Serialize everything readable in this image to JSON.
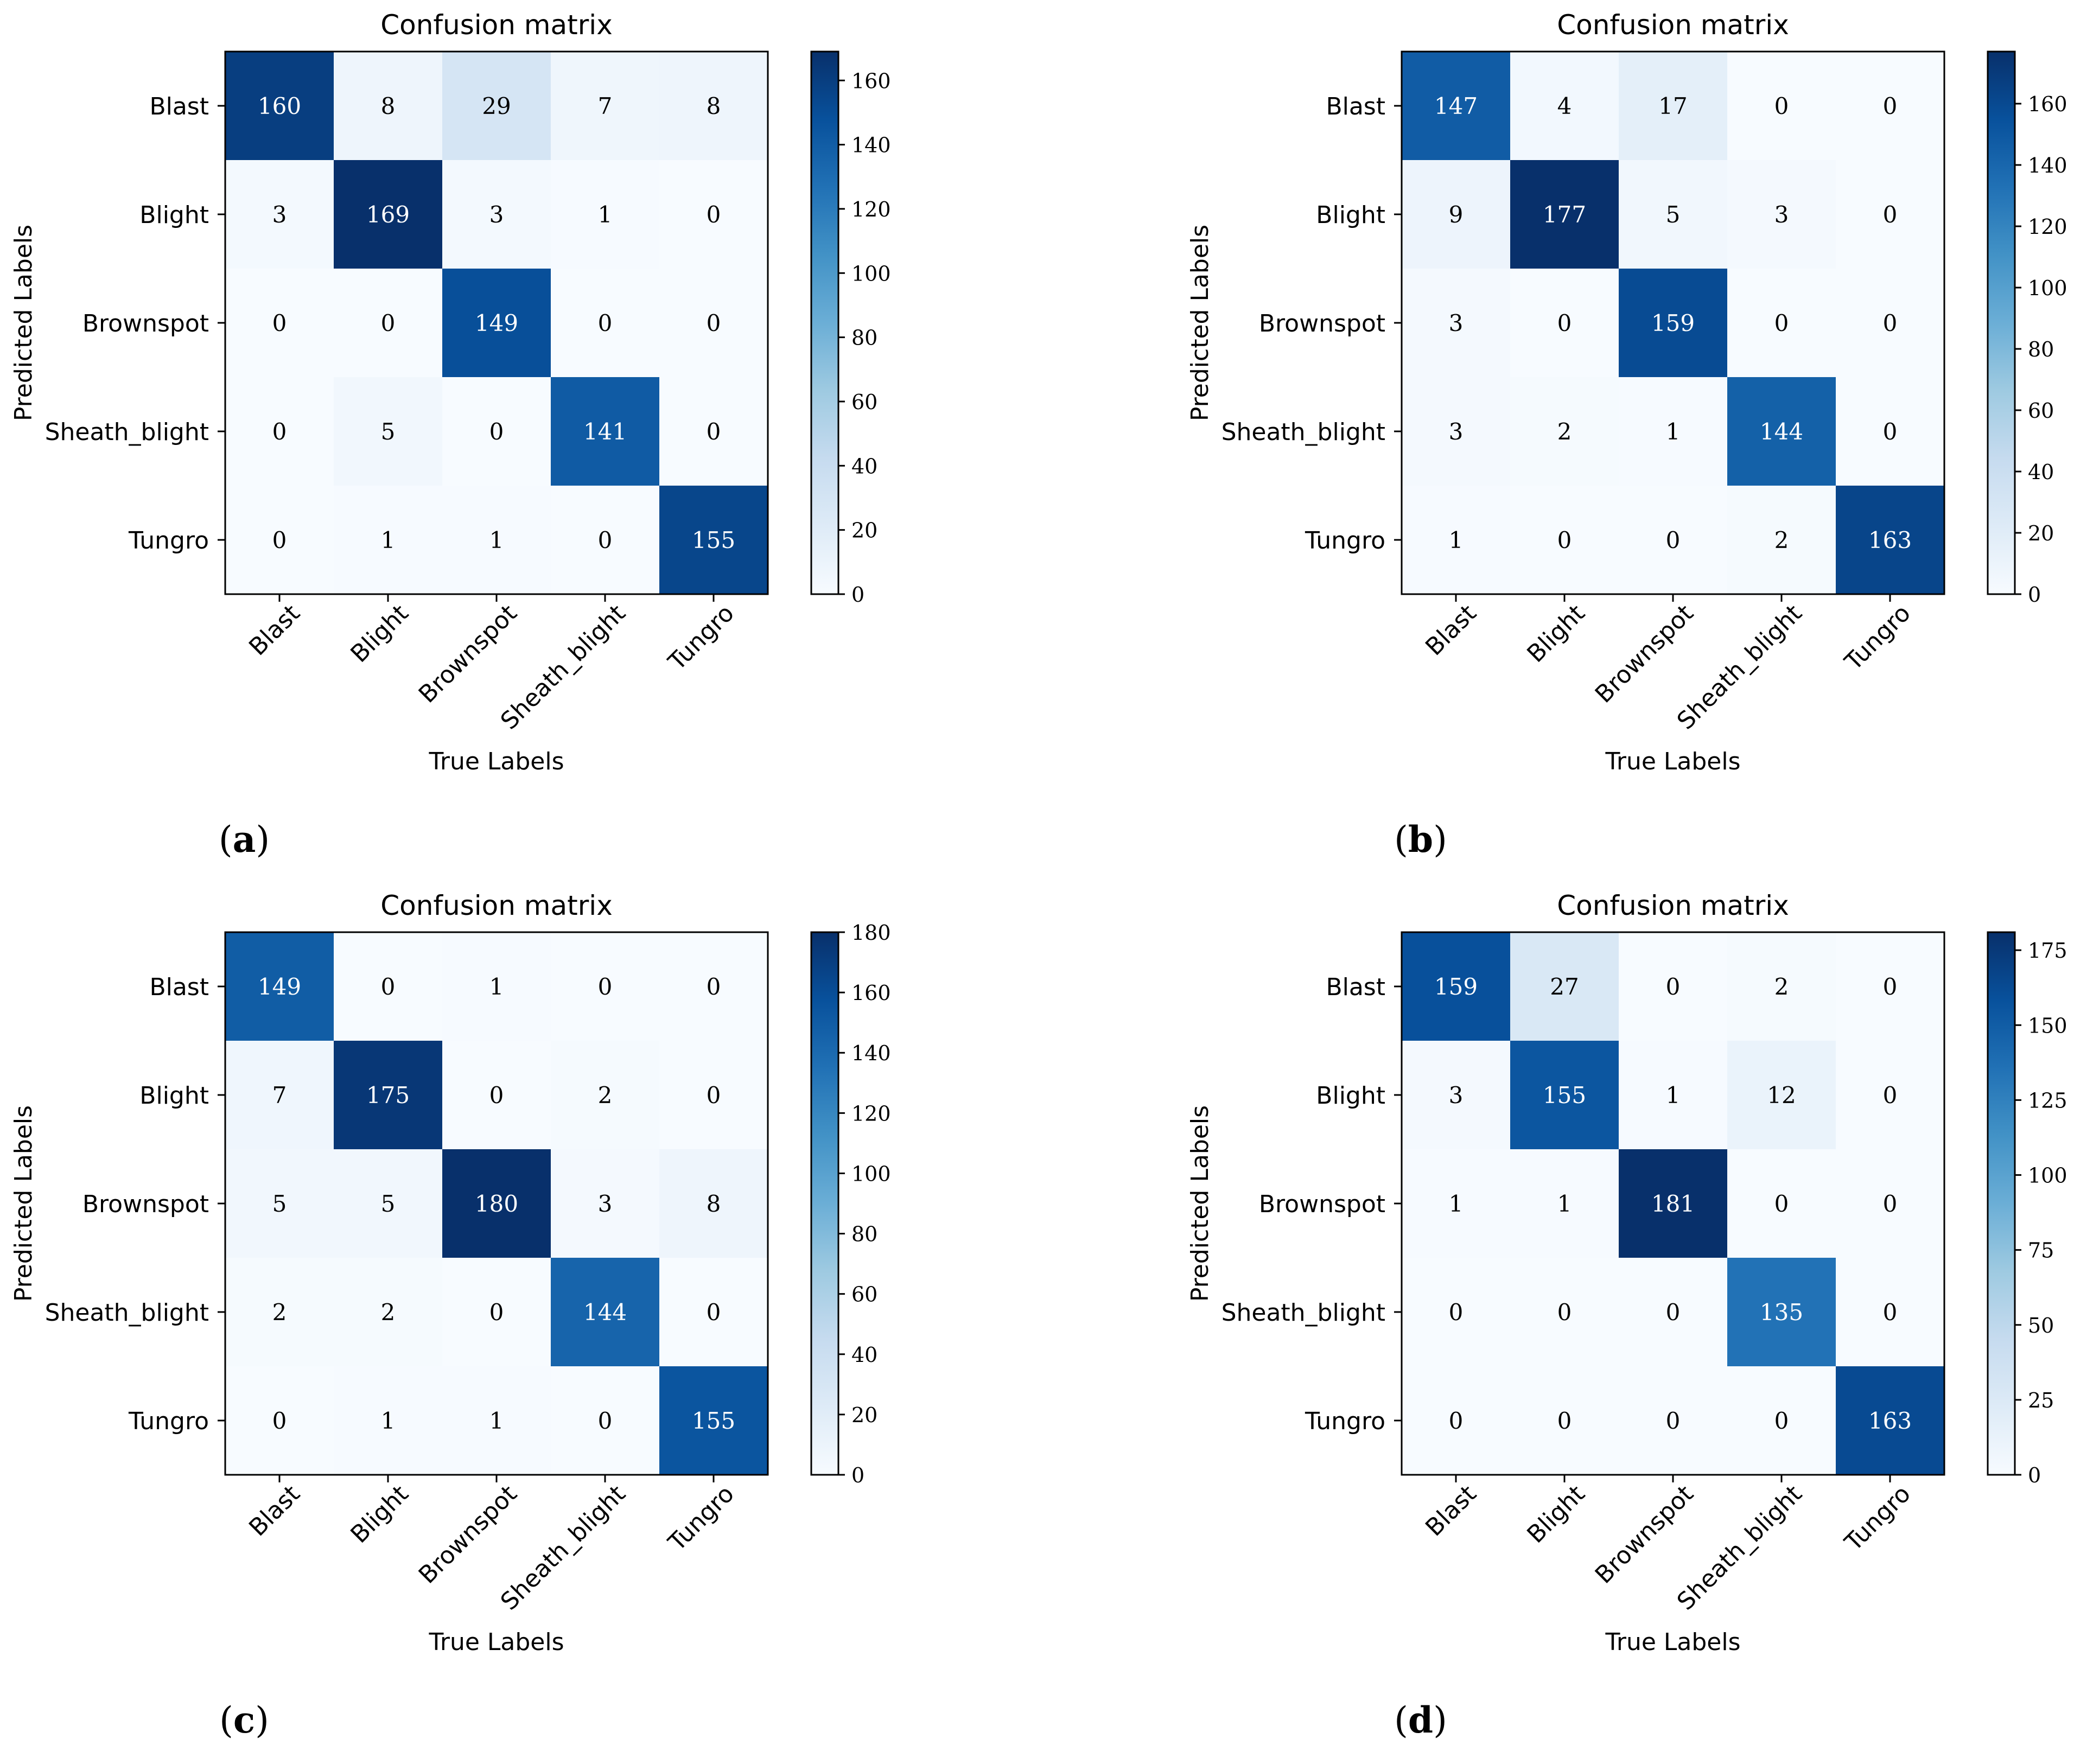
{
  "chart_data": [
    {
      "type": "heatmap",
      "panel_label": "a",
      "title": "Confusion matrix",
      "xlabel": "True Labels",
      "ylabel": "Predicted Labels",
      "x_categories": [
        "Blast",
        "Blight",
        "Brownspot",
        "Sheath_blight",
        "Tungro"
      ],
      "y_categories": [
        "Blast",
        "Blight",
        "Brownspot",
        "Sheath_blight",
        "Tungro"
      ],
      "values": [
        [
          160,
          8,
          29,
          7,
          8
        ],
        [
          3,
          169,
          3,
          1,
          0
        ],
        [
          0,
          0,
          149,
          0,
          0
        ],
        [
          0,
          5,
          0,
          141,
          0
        ],
        [
          0,
          1,
          1,
          0,
          155
        ]
      ],
      "colorbar": {
        "min": 0,
        "max": 169,
        "ticks": [
          0,
          20,
          40,
          60,
          80,
          100,
          120,
          140,
          160
        ],
        "colormap": "Blues"
      }
    },
    {
      "type": "heatmap",
      "panel_label": "b",
      "title": "Confusion matrix",
      "xlabel": "True Labels",
      "ylabel": "Predicted Labels",
      "x_categories": [
        "Blast",
        "Blight",
        "Brownspot",
        "Sheath_blight",
        "Tungro"
      ],
      "y_categories": [
        "Blast",
        "Blight",
        "Brownspot",
        "Sheath_blight",
        "Tungro"
      ],
      "values": [
        [
          147,
          4,
          17,
          0,
          0
        ],
        [
          9,
          177,
          5,
          3,
          0
        ],
        [
          3,
          0,
          159,
          0,
          0
        ],
        [
          3,
          2,
          1,
          144,
          0
        ],
        [
          1,
          0,
          0,
          2,
          163
        ]
      ],
      "colorbar": {
        "min": 0,
        "max": 177,
        "ticks": [
          0,
          20,
          40,
          60,
          80,
          100,
          120,
          140,
          160
        ],
        "colormap": "Blues"
      }
    },
    {
      "type": "heatmap",
      "panel_label": "c",
      "title": "Confusion matrix",
      "xlabel": "True Labels",
      "ylabel": "Predicted Labels",
      "x_categories": [
        "Blast",
        "Blight",
        "Brownspot",
        "Sheath_blight",
        "Tungro"
      ],
      "y_categories": [
        "Blast",
        "Blight",
        "Brownspot",
        "Sheath_blight",
        "Tungro"
      ],
      "values": [
        [
          149,
          0,
          1,
          0,
          0
        ],
        [
          7,
          175,
          0,
          2,
          0
        ],
        [
          5,
          5,
          180,
          3,
          8
        ],
        [
          2,
          2,
          0,
          144,
          0
        ],
        [
          0,
          1,
          1,
          0,
          155
        ]
      ],
      "colorbar": {
        "min": 0,
        "max": 180,
        "ticks": [
          0,
          20,
          40,
          60,
          80,
          100,
          120,
          140,
          160,
          180
        ],
        "colormap": "Blues"
      }
    },
    {
      "type": "heatmap",
      "panel_label": "d",
      "title": "Confusion matrix",
      "xlabel": "True Labels",
      "ylabel": "Predicted Labels",
      "x_categories": [
        "Blast",
        "Blight",
        "Brownspot",
        "Sheath_blight",
        "Tungro"
      ],
      "y_categories": [
        "Blast",
        "Blight",
        "Brownspot",
        "Sheath_blight",
        "Tungro"
      ],
      "values": [
        [
          159,
          27,
          0,
          2,
          0
        ],
        [
          3,
          155,
          1,
          12,
          0
        ],
        [
          1,
          1,
          181,
          0,
          0
        ],
        [
          0,
          0,
          0,
          135,
          0
        ],
        [
          0,
          0,
          0,
          0,
          163
        ]
      ],
      "colorbar": {
        "min": 0,
        "max": 181,
        "ticks": [
          0,
          25,
          50,
          75,
          100,
          125,
          150,
          175
        ],
        "colormap": "Blues"
      }
    }
  ]
}
